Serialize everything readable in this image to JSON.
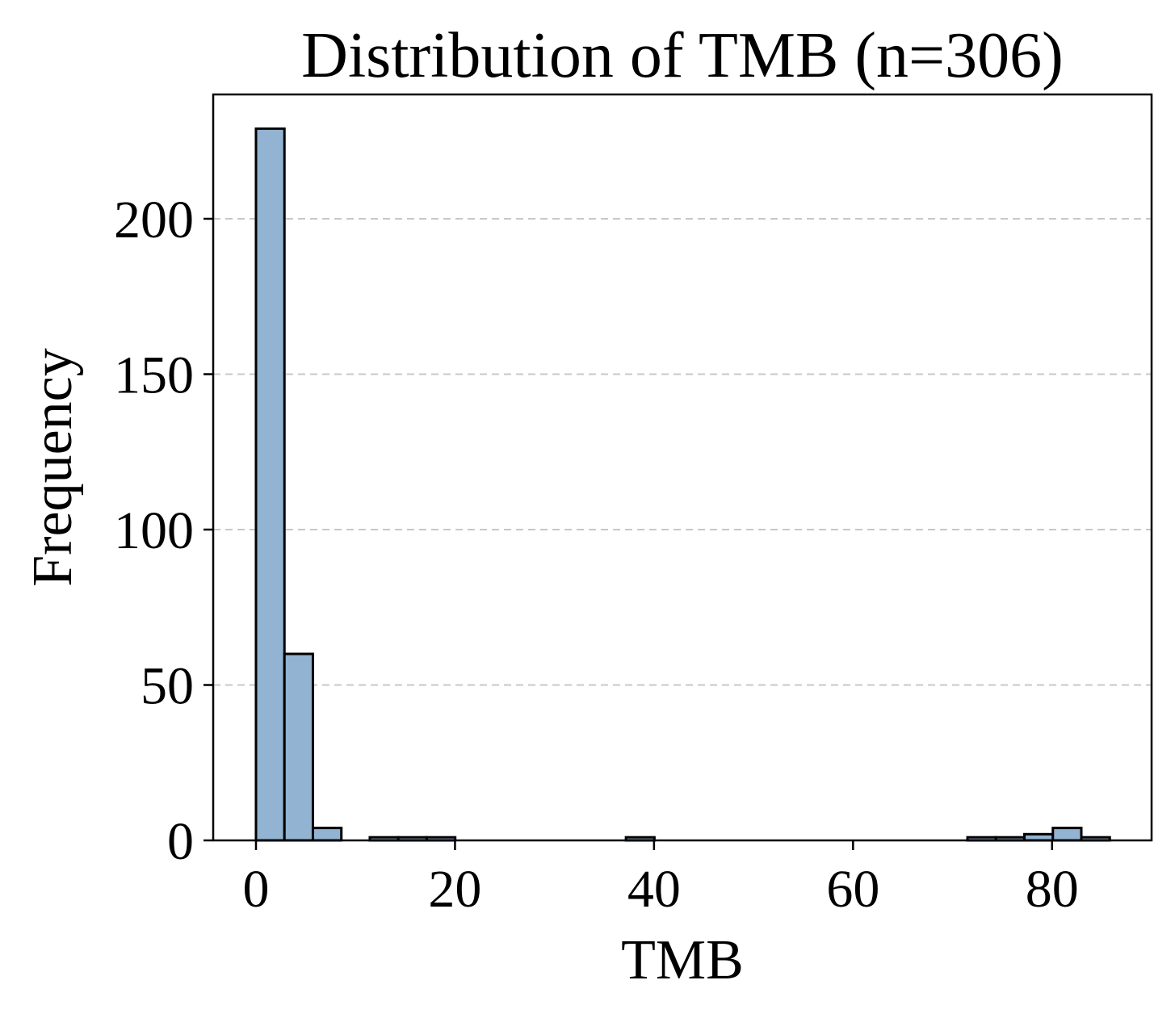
{
  "chart_data": {
    "type": "bar",
    "title": "Distribution of TMB (n=306)",
    "xlabel": "TMB",
    "ylabel": "Frequency",
    "xlim": [
      -4.3,
      90.0
    ],
    "ylim": [
      0,
      240
    ],
    "xticks": [
      0,
      20,
      40,
      60,
      80
    ],
    "yticks": [
      0,
      50,
      100,
      150,
      200
    ],
    "grid": "y-dashed",
    "bar_color": "#92b3d2",
    "edge_color": "#000000",
    "bin_width": 2.86,
    "bins": [
      {
        "x0": 0.0,
        "count": 229
      },
      {
        "x0": 2.86,
        "count": 60
      },
      {
        "x0": 5.72,
        "count": 4
      },
      {
        "x0": 8.58,
        "count": 0
      },
      {
        "x0": 11.44,
        "count": 1
      },
      {
        "x0": 14.3,
        "count": 1
      },
      {
        "x0": 17.16,
        "count": 1
      },
      {
        "x0": 20.02,
        "count": 0
      },
      {
        "x0": 22.88,
        "count": 0
      },
      {
        "x0": 25.74,
        "count": 0
      },
      {
        "x0": 28.6,
        "count": 0
      },
      {
        "x0": 31.46,
        "count": 0
      },
      {
        "x0": 34.32,
        "count": 0
      },
      {
        "x0": 37.18,
        "count": 1
      },
      {
        "x0": 40.04,
        "count": 0
      },
      {
        "x0": 42.9,
        "count": 0
      },
      {
        "x0": 45.76,
        "count": 0
      },
      {
        "x0": 48.62,
        "count": 0
      },
      {
        "x0": 51.48,
        "count": 0
      },
      {
        "x0": 54.34,
        "count": 0
      },
      {
        "x0": 57.2,
        "count": 0
      },
      {
        "x0": 60.06,
        "count": 0
      },
      {
        "x0": 62.92,
        "count": 0
      },
      {
        "x0": 65.78,
        "count": 0
      },
      {
        "x0": 68.64,
        "count": 0
      },
      {
        "x0": 71.5,
        "count": 1
      },
      {
        "x0": 74.36,
        "count": 1
      },
      {
        "x0": 77.22,
        "count": 2
      },
      {
        "x0": 80.08,
        "count": 4
      },
      {
        "x0": 82.94,
        "count": 1
      }
    ]
  }
}
